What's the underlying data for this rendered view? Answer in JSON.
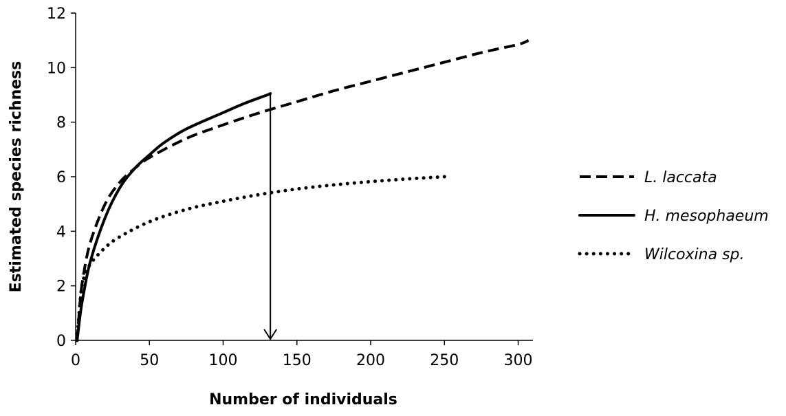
{
  "chart_data": {
    "type": "line",
    "title": "",
    "xlabel": "Number of individuals",
    "ylabel": "Estimated species richness",
    "xlim": [
      0,
      310
    ],
    "ylim": [
      0,
      12
    ],
    "xticks": [
      0,
      50,
      100,
      150,
      200,
      250,
      300
    ],
    "yticks": [
      0,
      2,
      4,
      6,
      8,
      10,
      12
    ],
    "grid": false,
    "legend_position": "right",
    "series": [
      {
        "name": "L. laccata",
        "line_style": "dashed",
        "color": "#000000",
        "x": [
          1,
          3,
          5,
          10,
          20,
          30,
          40,
          50,
          75,
          100,
          125,
          150,
          175,
          200,
          225,
          250,
          275,
          300,
          307
        ],
        "y": [
          0,
          1.4,
          2.3,
          3.6,
          5.0,
          5.8,
          6.3,
          6.7,
          7.4,
          7.9,
          8.35,
          8.75,
          9.15,
          9.5,
          9.85,
          10.2,
          10.55,
          10.85,
          11.0
        ]
      },
      {
        "name": "H. mesophaeum",
        "line_style": "solid",
        "color": "#000000",
        "x": [
          1,
          3,
          5,
          10,
          20,
          30,
          40,
          50,
          60,
          75,
          100,
          115,
          130,
          132
        ],
        "y": [
          0,
          0.9,
          1.6,
          2.9,
          4.5,
          5.6,
          6.3,
          6.8,
          7.25,
          7.75,
          8.35,
          8.7,
          9.0,
          9.05
        ]
      },
      {
        "name": "Wilcoxina sp.",
        "line_style": "dotted",
        "color": "#000000",
        "x": [
          1,
          3,
          5,
          10,
          20,
          30,
          50,
          75,
          100,
          125,
          150,
          175,
          200,
          225,
          250
        ],
        "y": [
          0,
          1.4,
          2.2,
          2.8,
          3.4,
          3.8,
          4.35,
          4.8,
          5.1,
          5.35,
          5.55,
          5.7,
          5.82,
          5.92,
          6.0
        ]
      }
    ],
    "annotations": [
      {
        "type": "arrow",
        "x": 132,
        "y_from": 9.05,
        "y_to": 0
      }
    ]
  }
}
